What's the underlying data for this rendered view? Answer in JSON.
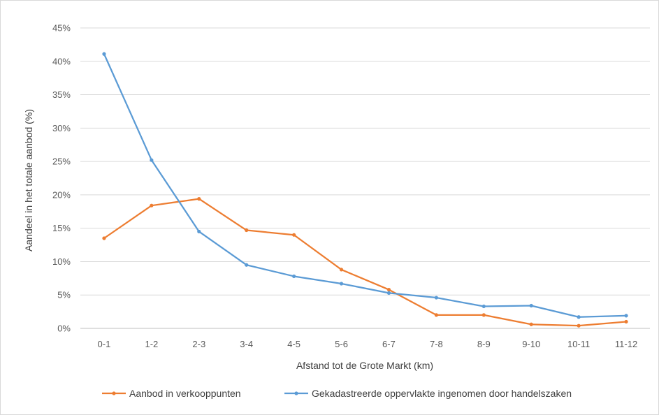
{
  "chart_data": {
    "type": "line",
    "title": "",
    "xlabel": "Afstand tot de Grote Markt (km)",
    "ylabel": "Aandeel in het totale aanbod (%)",
    "categories": [
      "0-1",
      "1-2",
      "2-3",
      "3-4",
      "4-5",
      "5-6",
      "6-7",
      "7-8",
      "8-9",
      "9-10",
      "10-11",
      "11-12"
    ],
    "ylim": [
      0,
      45
    ],
    "yticks": [
      "0%",
      "5%",
      "10%",
      "15%",
      "20%",
      "25%",
      "30%",
      "35%",
      "40%",
      "45%"
    ],
    "grid": true,
    "legend_position": "bottom",
    "series": [
      {
        "name": "Aanbod in verkooppunten",
        "color": "#ED7D31",
        "values": [
          13.5,
          18.4,
          19.4,
          14.7,
          14.0,
          8.8,
          5.8,
          2.0,
          2.0,
          0.6,
          0.4,
          1.0
        ]
      },
      {
        "name": "Gekadastreerde oppervlakte ingenomen door handelszaken",
        "color": "#5B9BD5",
        "values": [
          41.1,
          25.2,
          14.5,
          9.5,
          7.8,
          6.7,
          5.3,
          4.6,
          3.3,
          3.4,
          1.7,
          1.9
        ]
      }
    ]
  }
}
